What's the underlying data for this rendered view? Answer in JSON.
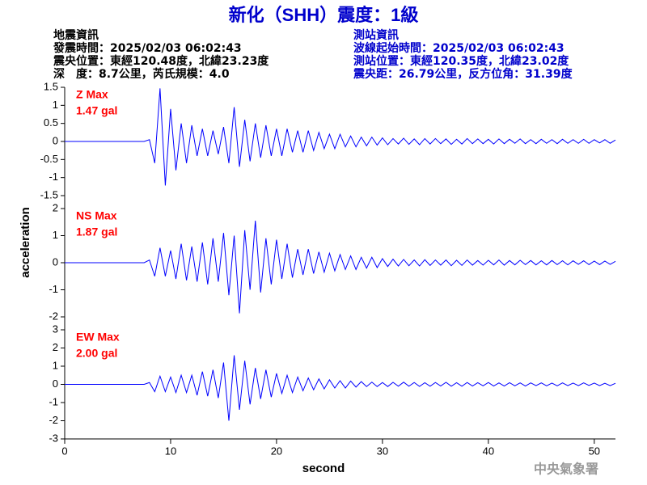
{
  "header": {
    "title": "新化（SHH）震度：1級",
    "left": [
      "地震資訊",
      "發震時間：2025/02/03 06:02:43",
      "震央位置：東經120.48度，北緯23.23度",
      "深　度：8.7公里，芮氏規模：4.0"
    ],
    "right": [
      "測站資訊",
      "波線起始時間：2025/02/03 06:02:43",
      "測站位置：東經120.35度，北緯23.02度",
      "震央距：26.79公里，反方位角：31.39度"
    ],
    "footer": "中央氣象署"
  },
  "chart_data": {
    "type": "line",
    "xlabel": "second",
    "ylabel": "acceleration",
    "xlim": [
      0,
      52
    ],
    "xticks": [
      0,
      10,
      20,
      30,
      40,
      50
    ],
    "label_color": "#ff0000",
    "x": [
      0,
      7.5,
      8,
      8.5,
      9,
      9.5,
      10,
      10.5,
      11,
      11.5,
      12,
      12.5,
      13,
      13.5,
      14,
      14.5,
      15,
      15.5,
      16,
      16.5,
      17,
      17.5,
      18,
      18.5,
      19,
      19.5,
      20,
      20.5,
      21,
      21.5,
      22,
      22.5,
      23,
      23.5,
      24,
      24.5,
      25,
      25.5,
      26,
      26.5,
      27,
      27.5,
      28,
      28.5,
      29,
      29.5,
      30,
      30.5,
      31,
      31.5,
      32,
      32.5,
      33,
      33.5,
      34,
      34.5,
      35,
      35.5,
      36,
      36.5,
      37,
      37.5,
      38,
      38.5,
      39,
      39.5,
      40,
      40.5,
      41,
      41.5,
      42,
      42.5,
      43,
      43.5,
      44,
      44.5,
      45,
      45.5,
      46,
      46.5,
      47,
      47.5,
      48,
      48.5,
      49,
      49.5,
      50,
      50.5,
      51,
      51.5,
      52
    ],
    "series": [
      {
        "name": "Z Max",
        "annotation": "1.47 gal",
        "color": "#0000ff",
        "ylim": [
          -1.5,
          1.5
        ],
        "yticks": [
          -1.5,
          -1,
          -0.5,
          0,
          0.5,
          1,
          1.5
        ],
        "values": [
          0,
          0,
          0.05,
          -0.6,
          1.47,
          -1.22,
          0.9,
          -0.8,
          0.5,
          -0.6,
          0.45,
          -0.4,
          0.35,
          -0.4,
          0.3,
          -0.35,
          0.4,
          -0.6,
          0.95,
          -0.7,
          0.6,
          -0.55,
          0.5,
          -0.45,
          0.45,
          -0.4,
          0.35,
          -0.4,
          0.35,
          -0.3,
          0.3,
          -0.3,
          0.3,
          -0.25,
          0.25,
          -0.2,
          0.2,
          -0.2,
          0.2,
          -0.15,
          0.15,
          -0.15,
          0.12,
          -0.12,
          0.12,
          -0.1,
          0.1,
          -0.09,
          0.08,
          -0.07,
          0.09,
          -0.08,
          0.07,
          -0.09,
          0.08,
          -0.07,
          0.08,
          -0.06,
          0.07,
          -0.08,
          0.06,
          -0.07,
          0.08,
          -0.06,
          0.07,
          -0.06,
          0.06,
          -0.07,
          0.07,
          -0.06,
          0.06,
          -0.05,
          0.07,
          -0.06,
          0.05,
          -0.06,
          0.06,
          -0.05,
          0.05,
          -0.06,
          0.06,
          -0.05,
          0.05,
          -0.05,
          0.06,
          -0.05,
          0.05,
          -0.04,
          0.05,
          -0.05,
          0.04
        ]
      },
      {
        "name": "NS Max",
        "annotation": "1.87 gal",
        "color": "#0000ff",
        "ylim": [
          -2,
          2
        ],
        "yticks": [
          -2,
          -1,
          0,
          1,
          2
        ],
        "values": [
          0,
          0,
          0.1,
          -0.5,
          0.55,
          -0.5,
          0.45,
          -0.6,
          0.7,
          -0.65,
          0.6,
          -0.7,
          0.75,
          -0.8,
          0.9,
          -0.7,
          1.1,
          -1.2,
          1.0,
          -1.87,
          1.2,
          -1.0,
          1.55,
          -1.1,
          0.9,
          -0.8,
          0.85,
          -0.6,
          0.7,
          -0.55,
          0.5,
          -0.45,
          0.5,
          -0.4,
          0.4,
          -0.35,
          0.35,
          -0.3,
          0.3,
          -0.25,
          0.25,
          -0.25,
          0.2,
          -0.2,
          0.2,
          -0.18,
          0.15,
          -0.14,
          0.13,
          -0.12,
          0.12,
          -0.11,
          0.1,
          -0.12,
          0.11,
          -0.1,
          0.1,
          -0.09,
          0.1,
          -0.11,
          0.09,
          -0.1,
          0.1,
          -0.09,
          0.08,
          -0.09,
          0.09,
          -0.08,
          0.1,
          -0.09,
          0.08,
          -0.08,
          0.09,
          -0.07,
          0.08,
          -0.08,
          0.07,
          -0.08,
          0.08,
          -0.07,
          0.07,
          -0.08,
          0.07,
          -0.06,
          0.07,
          -0.07,
          0.06,
          -0.07,
          0.06,
          -0.06,
          0.05
        ]
      },
      {
        "name": "EW Max",
        "annotation": "2.00 gal",
        "color": "#0000ff",
        "ylim": [
          -3,
          3
        ],
        "yticks": [
          -3,
          -2,
          -1,
          0,
          1,
          2,
          3
        ],
        "values": [
          0,
          0,
          0.1,
          -0.4,
          0.45,
          -0.4,
          0.4,
          -0.45,
          0.5,
          -0.45,
          0.5,
          -0.6,
          0.7,
          -0.65,
          0.8,
          -0.75,
          1.2,
          -2.0,
          1.6,
          -1.4,
          1.3,
          -1.1,
          0.9,
          -0.8,
          0.8,
          -0.7,
          0.6,
          -0.5,
          0.5,
          -0.45,
          0.4,
          -0.35,
          0.35,
          -0.3,
          0.3,
          -0.25,
          0.25,
          -0.2,
          0.2,
          -0.2,
          0.18,
          -0.15,
          0.15,
          -0.12,
          0.12,
          -0.12,
          0.1,
          -0.12,
          0.11,
          -0.1,
          0.12,
          -0.1,
          0.1,
          -0.11,
          0.09,
          -0.1,
          0.1,
          -0.09,
          0.11,
          -0.1,
          0.09,
          -0.1,
          0.1,
          -0.09,
          0.09,
          -0.08,
          0.1,
          -0.09,
          0.08,
          -0.09,
          0.09,
          -0.08,
          0.08,
          -0.09,
          0.08,
          -0.07,
          0.08,
          -0.08,
          0.07,
          -0.08,
          0.08,
          -0.07,
          0.07,
          -0.07,
          0.08,
          -0.06,
          0.07,
          -0.07,
          0.06,
          -0.07,
          0.06
        ]
      }
    ]
  }
}
